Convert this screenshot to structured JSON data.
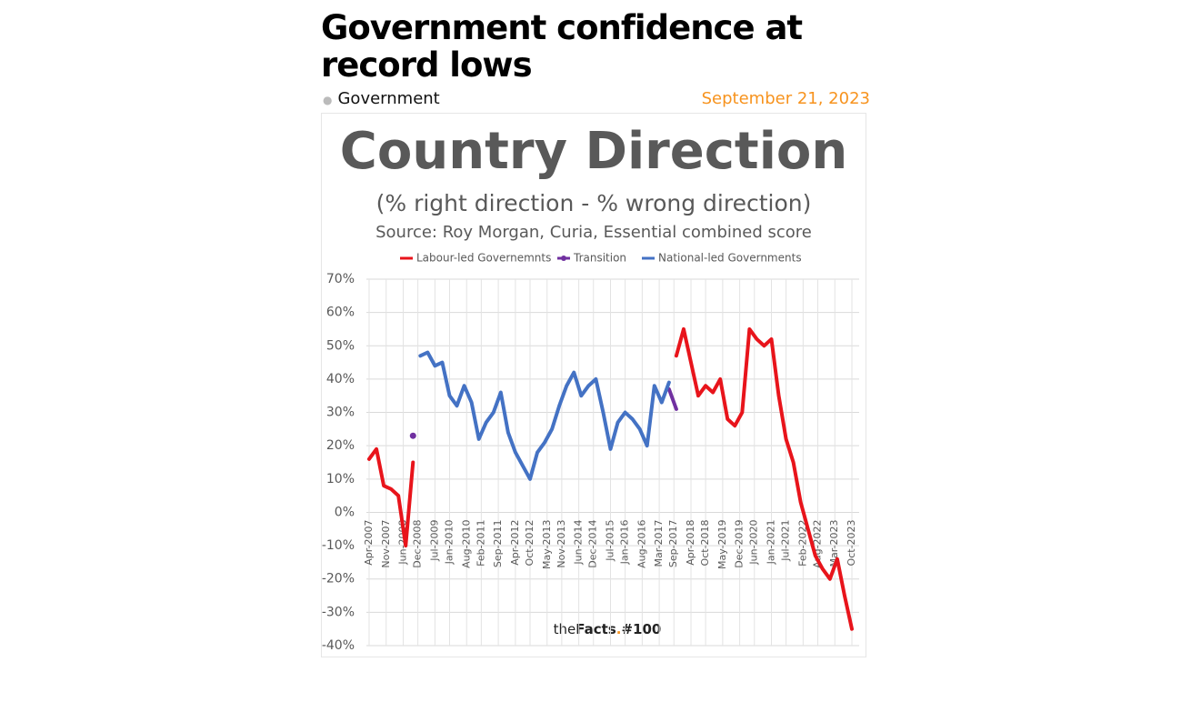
{
  "header": {
    "title": "Government confidence at record lows",
    "category": "Government",
    "date": "September 21, 2023"
  },
  "chart_data": {
    "type": "line",
    "title": "Country Direction",
    "subtitle": "(% right direction - % wrong direction)",
    "source": "Source: Roy Morgan, Curia, Essential combined score",
    "watermark": [
      "the",
      "Facts",
      ".",
      "#100"
    ],
    "x": [
      "2007-04",
      "2007-07",
      "2007-10",
      "2008-01",
      "2008-04",
      "2008-07",
      "2008-10",
      "2009-01",
      "2009-04",
      "2009-07",
      "2009-10",
      "2010-01",
      "2010-04",
      "2010-07",
      "2010-10",
      "2011-01",
      "2011-04",
      "2011-07",
      "2011-10",
      "2012-01",
      "2012-04",
      "2012-07",
      "2012-10",
      "2013-01",
      "2013-04",
      "2013-07",
      "2013-10",
      "2014-01",
      "2014-04",
      "2014-07",
      "2014-10",
      "2015-01",
      "2015-04",
      "2015-07",
      "2015-10",
      "2016-01",
      "2016-04",
      "2016-07",
      "2016-10",
      "2017-01",
      "2017-04",
      "2017-07",
      "2017-10",
      "2018-01",
      "2018-04",
      "2018-07",
      "2018-10",
      "2019-01",
      "2019-04",
      "2019-07",
      "2019-10",
      "2020-01",
      "2020-04",
      "2020-07",
      "2020-10",
      "2021-01",
      "2021-04",
      "2021-07",
      "2021-10",
      "2022-01",
      "2022-04",
      "2022-07",
      "2022-10",
      "2023-01",
      "2023-04",
      "2023-07",
      "2023-10"
    ],
    "series": [
      {
        "name": "Labour-led Governemnts",
        "color": "#e8141b",
        "values": [
          16,
          19,
          8,
          7,
          5,
          -10,
          15,
          null,
          null,
          null,
          null,
          null,
          null,
          null,
          null,
          null,
          null,
          null,
          null,
          null,
          null,
          null,
          null,
          null,
          null,
          null,
          null,
          null,
          null,
          null,
          null,
          null,
          null,
          null,
          null,
          null,
          null,
          null,
          null,
          null,
          null,
          null,
          47,
          55,
          45,
          35,
          38,
          36,
          40,
          28,
          26,
          30,
          55,
          52,
          50,
          52,
          35,
          22,
          15,
          3,
          -5,
          -13,
          -17,
          -20,
          -14,
          -25,
          -35
        ]
      },
      {
        "name": "Transition",
        "color": "#7030a0",
        "values": [
          null,
          null,
          null,
          null,
          null,
          null,
          23,
          null,
          null,
          null,
          null,
          null,
          null,
          null,
          null,
          null,
          null,
          null,
          null,
          null,
          null,
          null,
          null,
          null,
          null,
          null,
          null,
          null,
          null,
          null,
          null,
          null,
          null,
          null,
          null,
          null,
          null,
          null,
          null,
          null,
          null,
          37,
          31,
          null,
          null,
          null,
          null,
          null,
          null,
          null,
          null,
          null,
          null,
          null,
          null,
          null,
          null,
          null,
          null,
          null,
          null,
          null,
          null,
          null,
          null,
          null,
          null
        ]
      },
      {
        "name": "National-led Governments",
        "color": "#4472c4",
        "values": [
          null,
          null,
          null,
          null,
          null,
          null,
          null,
          47,
          48,
          44,
          45,
          35,
          32,
          38,
          33,
          22,
          27,
          30,
          36,
          24,
          18,
          14,
          10,
          18,
          21,
          25,
          32,
          38,
          42,
          35,
          38,
          40,
          30,
          19,
          27,
          30,
          28,
          25,
          20,
          38,
          33,
          39,
          null,
          null,
          null,
          null,
          null,
          null,
          null,
          null,
          null,
          null,
          null,
          null,
          null,
          null,
          null,
          null,
          null,
          null,
          null,
          null,
          null,
          null,
          null,
          null,
          null
        ]
      }
    ],
    "xlim": [
      "2007-04",
      "2023-10"
    ],
    "xticks": [
      {
        "value": "2007-04",
        "label": "Apr-2007"
      },
      {
        "value": "2007-11",
        "label": "Nov-2007"
      },
      {
        "value": "2008-06",
        "label": "Jun-2008"
      },
      {
        "value": "2008-12",
        "label": "Dec-2008"
      },
      {
        "value": "2009-07",
        "label": "Jul-2009"
      },
      {
        "value": "2010-01",
        "label": "Jan-2010"
      },
      {
        "value": "2010-08",
        "label": "Aug-2010"
      },
      {
        "value": "2011-02",
        "label": "Feb-2011"
      },
      {
        "value": "2011-09",
        "label": "Sep-2011"
      },
      {
        "value": "2012-04",
        "label": "Apr-2012"
      },
      {
        "value": "2012-10",
        "label": "Oct-2012"
      },
      {
        "value": "2013-05",
        "label": "May-2013"
      },
      {
        "value": "2013-11",
        "label": "Nov-2013"
      },
      {
        "value": "2014-06",
        "label": "Jun-2014"
      },
      {
        "value": "2014-12",
        "label": "Dec-2014"
      },
      {
        "value": "2015-07",
        "label": "Jul-2015"
      },
      {
        "value": "2016-01",
        "label": "Jan-2016"
      },
      {
        "value": "2016-08",
        "label": "Aug-2016"
      },
      {
        "value": "2017-03",
        "label": "Mar-2017"
      },
      {
        "value": "2017-09",
        "label": "Sep-2017"
      },
      {
        "value": "2018-04",
        "label": "Apr-2018"
      },
      {
        "value": "2018-10",
        "label": "Oct-2018"
      },
      {
        "value": "2019-05",
        "label": "May-2019"
      },
      {
        "value": "2019-12",
        "label": "Dec-2019"
      },
      {
        "value": "2020-06",
        "label": "Jun-2020"
      },
      {
        "value": "2021-01",
        "label": "Jan-2021"
      },
      {
        "value": "2021-07",
        "label": "Jul-2021"
      },
      {
        "value": "2022-02",
        "label": "Feb-2022"
      },
      {
        "value": "2022-08",
        "label": "Aug-2022"
      },
      {
        "value": "2023-03",
        "label": "Mar-2023"
      },
      {
        "value": "2023-10",
        "label": "Oct-2023"
      }
    ],
    "ylim": [
      -40,
      70
    ],
    "yticks": [
      {
        "value": -40,
        "label": "-40%"
      },
      {
        "value": -30,
        "label": "-30%"
      },
      {
        "value": -20,
        "label": "-20%"
      },
      {
        "value": -10,
        "label": "-10%"
      },
      {
        "value": 0,
        "label": "0%"
      },
      {
        "value": 10,
        "label": "10%"
      },
      {
        "value": 20,
        "label": "20%"
      },
      {
        "value": 30,
        "label": "30%"
      },
      {
        "value": 40,
        "label": "40%"
      },
      {
        "value": 50,
        "label": "50%"
      },
      {
        "value": 60,
        "label": "60%"
      },
      {
        "value": 70,
        "label": "70%"
      }
    ],
    "grid": true,
    "legend": "top"
  }
}
